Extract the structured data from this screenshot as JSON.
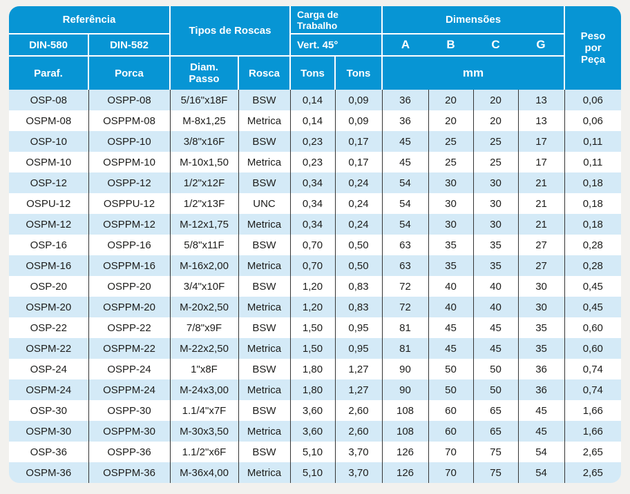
{
  "colors": {
    "header_blue": "#0795d4",
    "row_alt_blue": "#d4eaf7",
    "row_white": "#ffffff",
    "body_grid_line": "#333333",
    "body_text": "#1d1d1b",
    "page_background": "#f2f1ee",
    "header_text": "#ffffff"
  },
  "table": {
    "header": {
      "referencia": "Referência",
      "din580": "DIN-580",
      "din582": "DIN-582",
      "paraf": "Paraf.",
      "porca": "Porca",
      "tipos_de_roscas": "Tipos de Roscas",
      "diam_passo": "Diam.\nPasso",
      "rosca": "Rosca",
      "carga_de_trabalho": "Carga de\nTrabalho",
      "vert_45": "Vert. 45°",
      "tons_vert": "Tons",
      "tons_45": "Tons",
      "dimensoes": "Dimensões",
      "dim_a": "A",
      "dim_b": "B",
      "dim_c": "C",
      "dim_g": "G",
      "mm": "mm",
      "peso_por_peca": "Peso\npor\nPeça"
    },
    "column_keys": [
      "paraf",
      "porca",
      "diam-passo",
      "rosca",
      "tons-vert",
      "tons-45",
      "dim-a",
      "dim-b",
      "dim-c",
      "dim-g",
      "peso"
    ],
    "rows": [
      [
        "OSP-08",
        "OSPP-08",
        "5/16\"x18F",
        "BSW",
        "0,14",
        "0,09",
        "36",
        "20",
        "20",
        "13",
        "0,06"
      ],
      [
        "OSPM-08",
        "OSPPM-08",
        "M-8x1,25",
        "Metrica",
        "0,14",
        "0,09",
        "36",
        "20",
        "20",
        "13",
        "0,06"
      ],
      [
        "OSP-10",
        "OSPP-10",
        "3/8\"x16F",
        "BSW",
        "0,23",
        "0,17",
        "45",
        "25",
        "25",
        "17",
        "0,11"
      ],
      [
        "OSPM-10",
        "OSPPM-10",
        "M-10x1,50",
        "Metrica",
        "0,23",
        "0,17",
        "45",
        "25",
        "25",
        "17",
        "0,11"
      ],
      [
        "OSP-12",
        "OSPP-12",
        "1/2\"x12F",
        "BSW",
        "0,34",
        "0,24",
        "54",
        "30",
        "30",
        "21",
        "0,18"
      ],
      [
        "OSPU-12",
        "OSPPU-12",
        "1/2\"x13F",
        "UNC",
        "0,34",
        "0,24",
        "54",
        "30",
        "30",
        "21",
        "0,18"
      ],
      [
        "OSPM-12",
        "OSPPM-12",
        "M-12x1,75",
        "Metrica",
        "0,34",
        "0,24",
        "54",
        "30",
        "30",
        "21",
        "0,18"
      ],
      [
        "OSP-16",
        "OSPP-16",
        "5/8\"x11F",
        "BSW",
        "0,70",
        "0,50",
        "63",
        "35",
        "35",
        "27",
        "0,28"
      ],
      [
        "OSPM-16",
        "OSPPM-16",
        "M-16x2,00",
        "Metrica",
        "0,70",
        "0,50",
        "63",
        "35",
        "35",
        "27",
        "0,28"
      ],
      [
        "OSP-20",
        "OSPP-20",
        "3/4\"x10F",
        "BSW",
        "1,20",
        "0,83",
        "72",
        "40",
        "40",
        "30",
        "0,45"
      ],
      [
        "OSPM-20",
        "OSPPM-20",
        "M-20x2,50",
        "Metrica",
        "1,20",
        "0,83",
        "72",
        "40",
        "40",
        "30",
        "0,45"
      ],
      [
        "OSP-22",
        "OSPP-22",
        "7/8\"x9F",
        "BSW",
        "1,50",
        "0,95",
        "81",
        "45",
        "45",
        "35",
        "0,60"
      ],
      [
        "OSPM-22",
        "OSPPM-22",
        "M-22x2,50",
        "Metrica",
        "1,50",
        "0,95",
        "81",
        "45",
        "45",
        "35",
        "0,60"
      ],
      [
        "OSP-24",
        "OSPP-24",
        "1\"x8F",
        "BSW",
        "1,80",
        "1,27",
        "90",
        "50",
        "50",
        "36",
        "0,74"
      ],
      [
        "OSPM-24",
        "OSPPM-24",
        "M-24x3,00",
        "Metrica",
        "1,80",
        "1,27",
        "90",
        "50",
        "50",
        "36",
        "0,74"
      ],
      [
        "OSP-30",
        "OSPP-30",
        "1.1/4\"x7F",
        "BSW",
        "3,60",
        "2,60",
        "108",
        "60",
        "65",
        "45",
        "1,66"
      ],
      [
        "OSPM-30",
        "OSPPM-30",
        "M-30x3,50",
        "Metrica",
        "3,60",
        "2,60",
        "108",
        "60",
        "65",
        "45",
        "1,66"
      ],
      [
        "OSP-36",
        "OSPP-36",
        "1.1/2\"x6F",
        "BSW",
        "5,10",
        "3,70",
        "126",
        "70",
        "75",
        "54",
        "2,65"
      ],
      [
        "OSPM-36",
        "OSPPM-36",
        "M-36x4,00",
        "Metrica",
        "5,10",
        "3,70",
        "126",
        "70",
        "75",
        "54",
        "2,65"
      ]
    ]
  }
}
